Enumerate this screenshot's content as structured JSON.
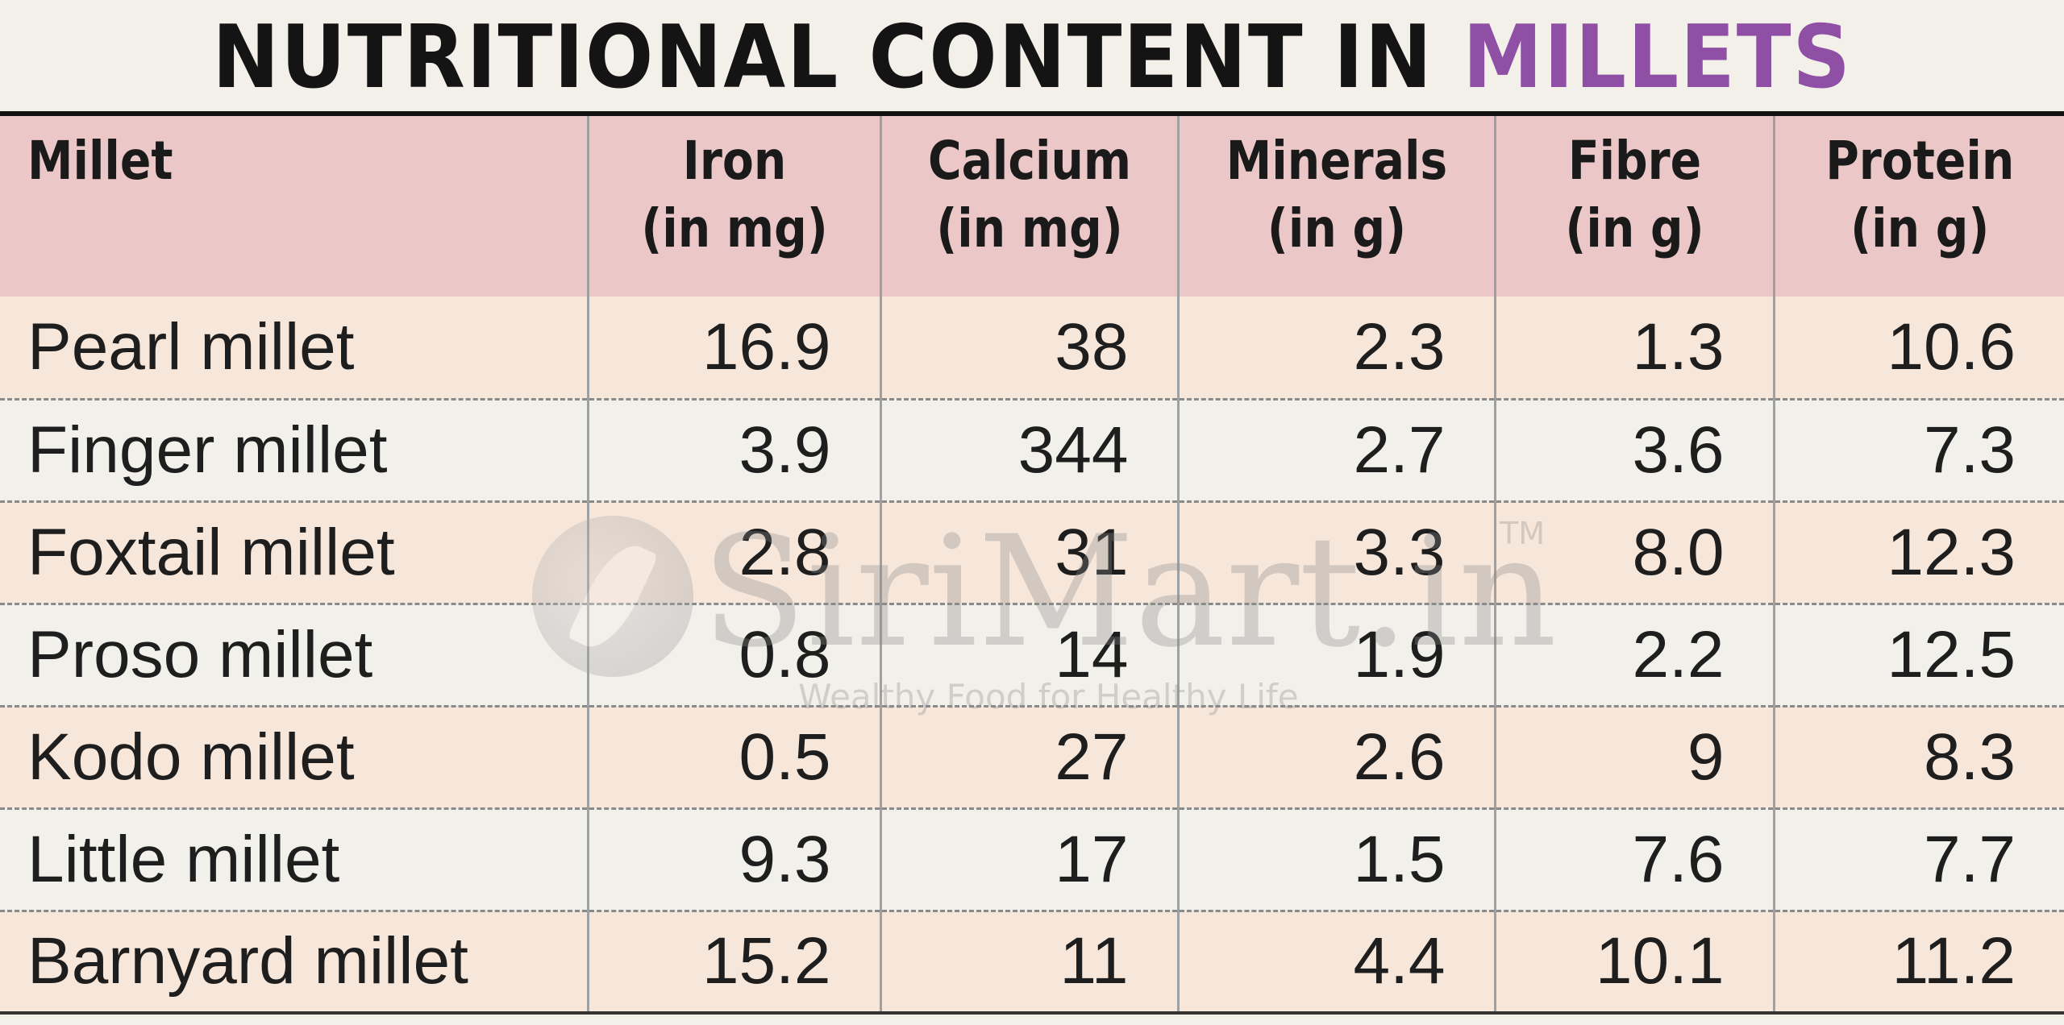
{
  "title": {
    "main": "NUTRITIONAL CONTENT IN ",
    "accent": "MILLETS",
    "accent_color": "#8e4fa5"
  },
  "table": {
    "headers": [
      {
        "line1": "Millet",
        "line2": ""
      },
      {
        "line1": "Iron",
        "line2": "(in mg)"
      },
      {
        "line1": "Calcium",
        "line2": "(in mg)"
      },
      {
        "line1": "Minerals",
        "line2": "(in g)"
      },
      {
        "line1": "Fibre",
        "line2": "(in g)"
      },
      {
        "line1": "Protein",
        "line2": "(in g)"
      }
    ],
    "rows": [
      {
        "millet": "Pearl millet",
        "iron": "16.9",
        "calcium": "38",
        "minerals": "2.3",
        "fibre": "1.3",
        "protein": "10.6"
      },
      {
        "millet": "Finger millet",
        "iron": "3.9",
        "calcium": "344",
        "minerals": "2.7",
        "fibre": "3.6",
        "protein": "7.3"
      },
      {
        "millet": "Foxtail millet",
        "iron": "2.8",
        "calcium": "31",
        "minerals": "3.3",
        "fibre": "8.0",
        "protein": "12.3"
      },
      {
        "millet": "Proso millet",
        "iron": "0.8",
        "calcium": "14",
        "minerals": "1.9",
        "fibre": "2.2",
        "protein": "12.5"
      },
      {
        "millet": "Kodo millet",
        "iron": "0.5",
        "calcium": "27",
        "minerals": "2.6",
        "fibre": "9",
        "protein": "8.3"
      },
      {
        "millet": "Little millet",
        "iron": "9.3",
        "calcium": "17",
        "minerals": "1.5",
        "fibre": "7.6",
        "protein": "7.7"
      },
      {
        "millet": "Barnyard millet",
        "iron": "15.2",
        "calcium": "11",
        "minerals": "4.4",
        "fibre": "10.1",
        "protein": "11.2"
      }
    ]
  },
  "watermark": {
    "brand": "SiriMart.in",
    "trademark": "TM",
    "tagline": "Wealthy Food for Healthy Life",
    "icon": "leaf-logo-icon"
  }
}
